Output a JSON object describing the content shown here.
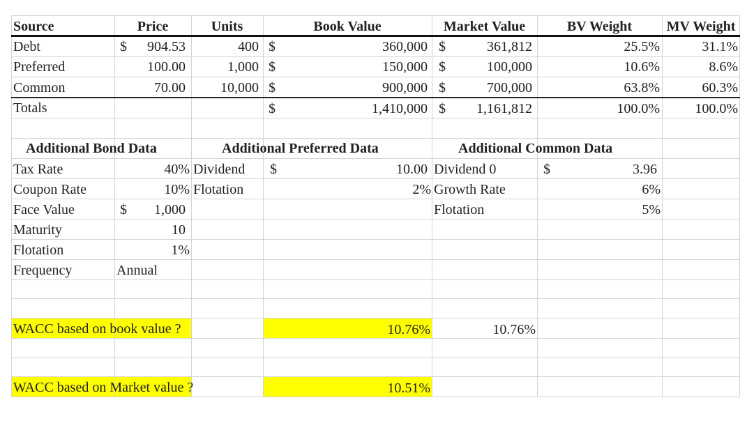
{
  "headers": {
    "source": "Source",
    "price": "Price",
    "units": "Units",
    "book_value": "Book Value",
    "market_value": "Market Value",
    "bv_weight": "BV Weight",
    "mv_weight": "MV Weight"
  },
  "rows": [
    {
      "source": "Debt",
      "price_cur": "$",
      "price": "904.53",
      "units": "400",
      "bv_cur": "$",
      "book_value": "360,000",
      "mv_cur": "$",
      "market_value": "361,812",
      "bv_weight": "25.5%",
      "mv_weight": "31.1%"
    },
    {
      "source": "Preferred",
      "price_cur": "",
      "price": "100.00",
      "units": "1,000",
      "bv_cur": "$",
      "book_value": "150,000",
      "mv_cur": "$",
      "market_value": "100,000",
      "bv_weight": "10.6%",
      "mv_weight": "8.6%"
    },
    {
      "source": "Common",
      "price_cur": "",
      "price": "70.00",
      "units": "10,000",
      "bv_cur": "$",
      "book_value": "900,000",
      "mv_cur": "$",
      "market_value": "700,000",
      "bv_weight": "63.8%",
      "mv_weight": "60.3%"
    }
  ],
  "totals": {
    "label": "Totals",
    "bv_cur": "$",
    "book_value": "1,410,000",
    "mv_cur": "$",
    "market_value": "1,161,812",
    "bv_weight": "100.0%",
    "mv_weight": "100.0%"
  },
  "bond": {
    "title": "Additional Bond Data",
    "tax_rate_label": "Tax Rate",
    "tax_rate": "40%",
    "coupon_label": "Coupon Rate",
    "coupon": "10%",
    "face_label": "Face Value",
    "face_cur": "$",
    "face": "1,000",
    "maturity_label": "Maturity",
    "maturity": "10",
    "flotation_label": "Flotation",
    "flotation": "1%",
    "frequency_label": "Frequency",
    "frequency": "Annual"
  },
  "preferred": {
    "title": "Additional Preferred Data",
    "dividend_label": "Dividend",
    "dividend_cur": "$",
    "dividend": "10.00",
    "flotation_label": "Flotation",
    "flotation": "2%"
  },
  "common": {
    "title": "Additional Common Data",
    "dividend_label": "Dividend 0",
    "dividend_cur": "$",
    "dividend": "3.96",
    "growth_label": "Growth Rate",
    "growth": "6%",
    "flotation_label": "Flotation",
    "flotation": "5%"
  },
  "wacc": {
    "book_question": "WACC based on book value ?",
    "book_value": "10.76%",
    "book_check": "10.76%",
    "market_question": "WACC based on Market value ?",
    "market_value": "10.51%"
  },
  "colors": {
    "highlight": "#ffff00",
    "gridline": "#d4d4d4"
  }
}
